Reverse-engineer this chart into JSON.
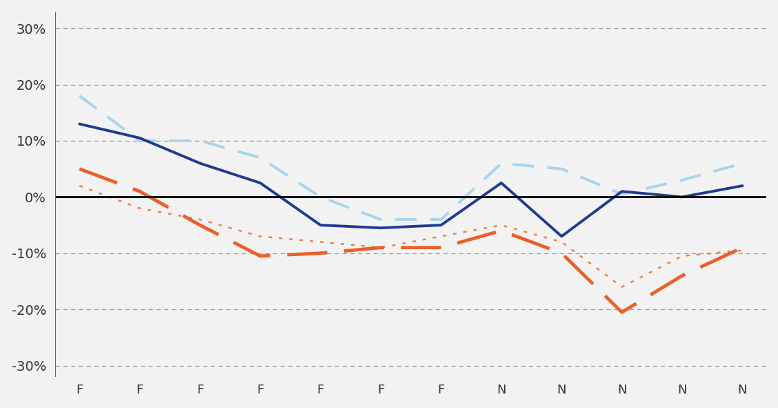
{
  "x_labels": [
    "F",
    "F",
    "F",
    "F",
    "F",
    "F",
    "F",
    "N",
    "N",
    "N",
    "N",
    "N"
  ],
  "dark_blue_solid": [
    0.13,
    0.105,
    0.06,
    0.025,
    -0.05,
    -0.055,
    -0.05,
    0.025,
    -0.07,
    0.01,
    0.0,
    0.02
  ],
  "light_blue_dashed": [
    0.18,
    0.1,
    0.1,
    0.07,
    0.0,
    -0.04,
    -0.04,
    0.06,
    0.05,
    0.005,
    0.03,
    0.06
  ],
  "orange_dashed": [
    0.05,
    0.01,
    -0.05,
    -0.105,
    -0.1,
    -0.09,
    -0.09,
    -0.06,
    -0.1,
    -0.205,
    -0.14,
    -0.09
  ],
  "orange_dotted": [
    0.02,
    -0.02,
    -0.04,
    -0.07,
    -0.08,
    -0.09,
    -0.07,
    -0.05,
    -0.08,
    -0.16,
    -0.105,
    -0.095
  ],
  "ylim": [
    -0.32,
    0.33
  ],
  "yticks": [
    -0.3,
    -0.2,
    -0.1,
    0.0,
    0.1,
    0.2,
    0.3
  ],
  "color_dark_blue": "#1f3a8f",
  "color_light_blue": "#a8d4ec",
  "color_orange_dashed": "#e8612a",
  "color_orange_dotted": "#e8814a",
  "bg_color": "#f2f2f2",
  "grid_color": "#999999",
  "zero_line_color": "#000000",
  "ylabel_fontsize": 14,
  "xlabel_fontsize": 13
}
